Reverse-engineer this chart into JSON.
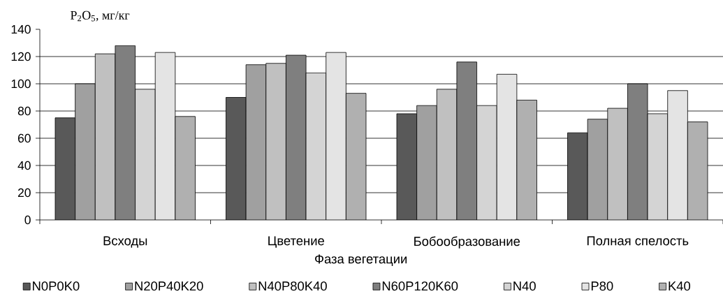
{
  "chart_data": {
    "type": "bar",
    "ylabel": "P$_{2}$O$_{5}$, мг/кг",
    "xlabel": "Фаза вегетации",
    "categories": [
      "Всходы",
      "Цветение",
      "Бобообразование",
      "Полная спелость"
    ],
    "series": [
      {
        "name": "N0P0K0",
        "color": "#595959",
        "values": [
          75,
          90,
          78,
          64
        ]
      },
      {
        "name": "N20P40K20",
        "color": "#a0a0a0",
        "values": [
          100,
          114,
          84,
          74
        ]
      },
      {
        "name": "N40P80K40",
        "color": "#c0c0c0",
        "values": [
          122,
          115,
          96,
          82
        ]
      },
      {
        "name": "N60P120K60",
        "color": "#7f7f7f",
        "values": [
          128,
          121,
          116,
          100
        ]
      },
      {
        "name": "N40",
        "color": "#d4d4d4",
        "values": [
          96,
          108,
          84,
          78
        ]
      },
      {
        "name": "P80",
        "color": "#e4e4e4",
        "values": [
          123,
          123,
          107,
          95
        ]
      },
      {
        "name": "K40",
        "color": "#b0b0b0",
        "values": [
          76,
          93,
          88,
          72
        ]
      }
    ],
    "ylim": [
      0,
      140
    ],
    "yticks": [
      0,
      20,
      40,
      60,
      80,
      100,
      120,
      140
    ],
    "grid": "y",
    "legend": "bottom"
  }
}
